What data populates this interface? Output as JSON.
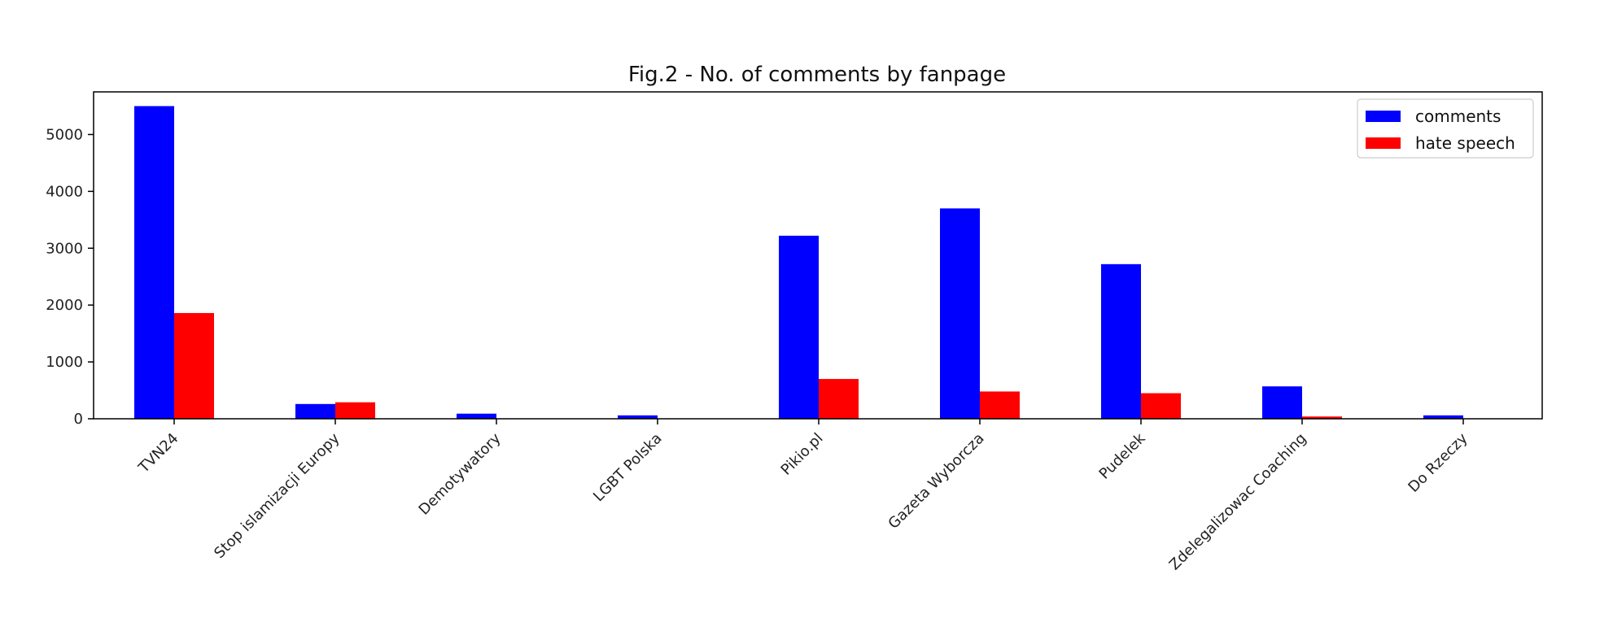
{
  "chart_data": {
    "type": "bar",
    "title": "Fig.2 - No. of comments by fanpage",
    "xlabel": "",
    "ylabel": "",
    "categories": [
      "TVN24",
      "Stop islamizacji Europy",
      "Demotywatory",
      "LGBT Polska",
      "Pikio.pl",
      "Gazeta Wyborcza",
      "Pudelek",
      "Zdelegalizowac Coaching",
      "Do Rzeczy"
    ],
    "series": [
      {
        "name": "comments",
        "color": "#0000ff",
        "values": [
          5500,
          260,
          90,
          60,
          3220,
          3700,
          2720,
          570,
          60
        ]
      },
      {
        "name": "hate speech",
        "color": "#ff0000",
        "values": [
          1860,
          290,
          0,
          0,
          700,
          480,
          450,
          40,
          0
        ]
      }
    ],
    "ylim": [
      0,
      5750
    ],
    "yticks": [
      "0",
      "1000",
      "2000",
      "3000",
      "4000",
      "5000"
    ],
    "legend": "top-right",
    "grid": false
  }
}
